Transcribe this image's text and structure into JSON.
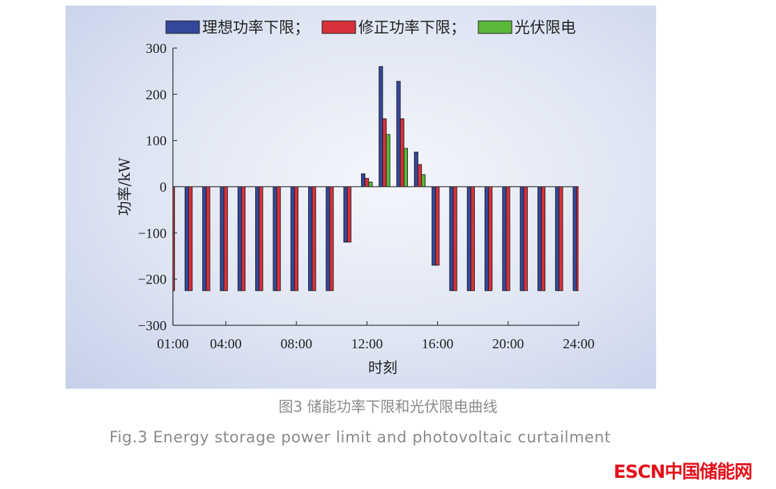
{
  "chart_data": {
    "type": "bar",
    "title": "",
    "xlabel": "时刻",
    "ylabel": "功率/kW",
    "ylim": [
      -300,
      300
    ],
    "yticks": [
      300,
      200,
      100,
      0,
      -100,
      -200,
      -300
    ],
    "ytick_labels": [
      "300",
      "200",
      "100",
      "0",
      "−100",
      "−200",
      "−300"
    ],
    "xlim_hours": [
      1,
      24
    ],
    "xticks": [
      1,
      4,
      8,
      12,
      16,
      20,
      24
    ],
    "xtick_labels": [
      "01:00",
      "04:00",
      "08:00",
      "12:00",
      "16:00",
      "20:00",
      "24:00"
    ],
    "categories": [
      1,
      2,
      3,
      4,
      5,
      6,
      7,
      8,
      9,
      10,
      11,
      12,
      13,
      14,
      15,
      16,
      17,
      18,
      19,
      20,
      21,
      22,
      23,
      24
    ],
    "series": [
      {
        "name": "理想功率下限",
        "color": "#34489a",
        "values": [
          -225,
          -225,
          -225,
          -225,
          -225,
          -225,
          -225,
          -225,
          -225,
          -225,
          -120,
          28,
          260,
          228,
          75,
          -170,
          -225,
          -225,
          -225,
          -225,
          -225,
          -225,
          -225,
          -225
        ]
      },
      {
        "name": "修正功率下限",
        "color": "#d8303a",
        "values": [
          -225,
          -225,
          -225,
          -225,
          -225,
          -225,
          -225,
          -225,
          -225,
          -225,
          -120,
          18,
          147,
          147,
          48,
          -170,
          -225,
          -225,
          -225,
          -225,
          -225,
          -225,
          -225,
          -225
        ]
      },
      {
        "name": "光伏限电",
        "color": "#5ab83a",
        "values": [
          0,
          0,
          0,
          0,
          0,
          0,
          0,
          0,
          0,
          0,
          0,
          10,
          113,
          83,
          26,
          0,
          0,
          0,
          0,
          0,
          0,
          0,
          0,
          0
        ]
      }
    ],
    "legend_separator": "；",
    "legend": "top",
    "grid": false
  },
  "caption": {
    "cn": "图3  储能功率下限和光伏限电曲线",
    "en": "Fig.3  Energy storage power limit and photovoltaic curtailment"
  },
  "logo": "ESCN中国储能网"
}
